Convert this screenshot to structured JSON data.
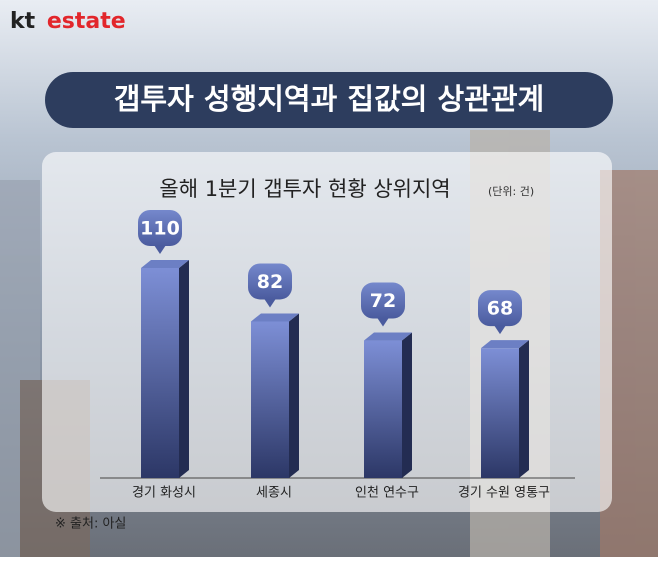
{
  "header": {
    "brand": [
      "kt",
      "estate"
    ],
    "title": "갭투자 성행지역과 집값의 상관관계"
  },
  "chart_data": {
    "type": "bar",
    "title": "올해 1분기 갭투자 현황 상위지역",
    "subtitle": "(단위: 건)",
    "categories": [
      "경기 화성시",
      "세종시",
      "인천 연수구",
      "경기 수원 영통구"
    ],
    "values": [
      110,
      82,
      72,
      68
    ],
    "color": "#6c7fc4"
  },
  "footer": {
    "source": "※ 출처: 아실"
  }
}
